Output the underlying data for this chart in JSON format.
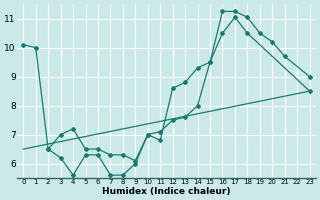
{
  "xlabel": "Humidex (Indice chaleur)",
  "bg_color": "#cce9e9",
  "grid_color": "#ffffff",
  "line_color": "#1a7a6e",
  "xlim": [
    -0.5,
    23.5
  ],
  "ylim": [
    5.5,
    11.5
  ],
  "xticks": [
    0,
    1,
    2,
    3,
    4,
    5,
    6,
    7,
    8,
    9,
    10,
    11,
    12,
    13,
    14,
    15,
    16,
    17,
    18,
    19,
    20,
    21,
    22,
    23
  ],
  "yticks": [
    6,
    7,
    8,
    9,
    10,
    11
  ],
  "series1": {
    "x": [
      0,
      1,
      2,
      3,
      4,
      5,
      6,
      7,
      8,
      9,
      10,
      11,
      12,
      13,
      14,
      15,
      16,
      17,
      18,
      19,
      20,
      21,
      23
    ],
    "y": [
      10.1,
      10.0,
      6.5,
      6.2,
      5.6,
      6.3,
      6.3,
      5.6,
      5.6,
      6.0,
      7.0,
      6.8,
      8.6,
      8.8,
      9.3,
      9.5,
      11.25,
      11.25,
      11.05,
      10.5,
      10.2,
      9.7,
      9.0
    ]
  },
  "series2": {
    "x": [
      2,
      3,
      4,
      5,
      6,
      7,
      8,
      9,
      10,
      11,
      12,
      13,
      14,
      15,
      16,
      17,
      18,
      23
    ],
    "y": [
      6.5,
      7.0,
      7.2,
      6.5,
      6.5,
      6.3,
      6.3,
      6.1,
      7.0,
      7.1,
      7.5,
      7.6,
      8.0,
      9.5,
      10.5,
      11.05,
      10.5,
      8.5
    ]
  },
  "series3": {
    "x": [
      0,
      23
    ],
    "y": [
      6.5,
      8.5
    ]
  }
}
